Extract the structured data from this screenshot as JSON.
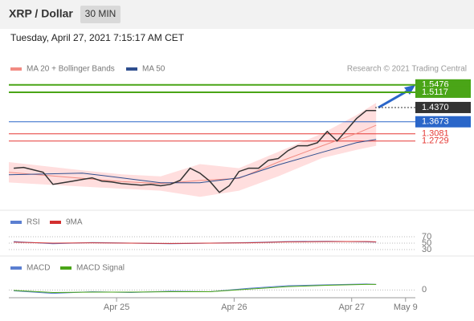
{
  "header": {
    "title": "XRP / Dollar",
    "interval": "30 MIN"
  },
  "timestamp": "Tuesday, April 27, 2021 7:15:17 AM CET",
  "chart_data": [
    {
      "type": "line",
      "copyright": "Research © 2021 Trading Central",
      "xlim": [
        2,
        85
      ],
      "ylim": [
        0.95,
        1.59
      ],
      "xticks": [
        {
          "value": 24,
          "label": "Apr 25"
        },
        {
          "value": 48,
          "label": "Apr 26"
        },
        {
          "value": 72,
          "label": "Apr 27"
        },
        {
          "value": 83,
          "label": "May 9"
        }
      ],
      "price": {
        "color": "#333333",
        "x": [
          3,
          5,
          7,
          9,
          11,
          13,
          15,
          17,
          19,
          21,
          23,
          25,
          27,
          29,
          31,
          33,
          35,
          37,
          39,
          41,
          43,
          45,
          47,
          49,
          51,
          53,
          55,
          57,
          59,
          61,
          63,
          65,
          67,
          69,
          71,
          73,
          75,
          77
        ],
        "values": [
          1.14,
          1.144,
          1.132,
          1.12,
          1.061,
          1.069,
          1.077,
          1.085,
          1.093,
          1.077,
          1.073,
          1.065,
          1.061,
          1.057,
          1.061,
          1.054,
          1.061,
          1.081,
          1.14,
          1.116,
          1.077,
          1.022,
          1.054,
          1.124,
          1.14,
          1.14,
          1.179,
          1.187,
          1.226,
          1.25,
          1.25,
          1.265,
          1.32,
          1.273,
          1.328,
          1.383,
          1.422,
          1.422
        ]
      },
      "series": [
        {
          "name": "MA 20 + Bollinger Bands",
          "color": "#f28b82",
          "band_color": "#ffdede",
          "x": [
            2,
            17,
            25,
            33,
            41,
            49,
            57,
            66,
            73,
            77
          ],
          "values": [
            1.12,
            1.09,
            1.075,
            1.065,
            1.08,
            1.09,
            1.17,
            1.25,
            1.31,
            1.35
          ],
          "upper": [
            1.17,
            1.13,
            1.11,
            1.1,
            1.16,
            1.14,
            1.22,
            1.31,
            1.4,
            1.46
          ],
          "lower": [
            1.07,
            1.05,
            1.04,
            1.03,
            1.0,
            1.03,
            1.1,
            1.19,
            1.23,
            1.25
          ]
        },
        {
          "name": "MA 50",
          "color": "#2f4f8f",
          "x": [
            2,
            17,
            25,
            33,
            41,
            49,
            57,
            66,
            73,
            77
          ],
          "values": [
            1.108,
            1.116,
            1.093,
            1.069,
            1.069,
            1.093,
            1.156,
            1.218,
            1.265,
            1.281
          ]
        }
      ],
      "levels": [
        {
          "value": 1.5476,
          "label": "1.5476",
          "color": "#4aa517"
        },
        {
          "value": 1.5117,
          "label": "1.5117",
          "color": "#4aa517"
        },
        {
          "value": 1.437,
          "label": "1.4370",
          "color": "#333333"
        },
        {
          "value": 1.3673,
          "label": "1.3673",
          "color": "#2a66c9"
        },
        {
          "value": 1.3081,
          "label": "1.3081",
          "color": "#e53935"
        },
        {
          "value": 1.2729,
          "label": "1.2729",
          "color": "#e53935"
        }
      ]
    },
    {
      "type": "line",
      "ylim": [
        0,
        100
      ],
      "yticks": [
        30,
        50,
        70
      ],
      "x": [
        3,
        11,
        19,
        27,
        35,
        43,
        51,
        59,
        67,
        75,
        77
      ],
      "series": [
        {
          "name": "RSI",
          "color": "#5b7fd1",
          "values": [
            55,
            48,
            52,
            50,
            48,
            50,
            52,
            55,
            56,
            54,
            53
          ]
        },
        {
          "name": "9MA",
          "color": "#d32f2f",
          "values": [
            53,
            50,
            51,
            50,
            49,
            50,
            51,
            54,
            55,
            55,
            54
          ]
        }
      ]
    },
    {
      "type": "line",
      "ylim": [
        -0.02,
        0.04
      ],
      "yticks": [
        0
      ],
      "x": [
        3,
        11,
        19,
        27,
        35,
        43,
        51,
        59,
        67,
        75,
        77
      ],
      "series": [
        {
          "name": "MACD",
          "color": "#5b7fd1",
          "values": [
            -0.002,
            -0.008,
            -0.004,
            -0.006,
            -0.003,
            -0.004,
            0.004,
            0.01,
            0.012,
            0.014,
            0.013
          ]
        },
        {
          "name": "MACD Signal",
          "color": "#4aa517",
          "values": [
            -0.001,
            -0.006,
            -0.005,
            -0.005,
            -0.004,
            -0.004,
            0.002,
            0.008,
            0.011,
            0.013,
            0.013
          ]
        }
      ]
    }
  ]
}
